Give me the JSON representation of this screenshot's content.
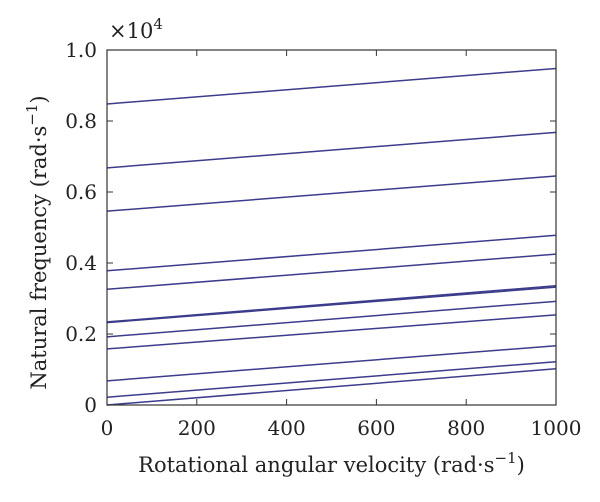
{
  "chart_data": {
    "type": "line",
    "title": "",
    "xlabel": "Rotational angular velocity (rad·s",
    "xlabel_sup": "−1",
    "xlabel_close": ")",
    "ylabel": "Natural frequency (rad·s",
    "ylabel_sup": "−1",
    "ylabel_close": ")",
    "y_multiplier_base": "×10",
    "y_multiplier_exp": "4",
    "xlim": [
      0,
      1000
    ],
    "ylim": [
      0,
      1.0
    ],
    "xticks": [
      0,
      200,
      400,
      600,
      800,
      1000
    ],
    "xtick_labels": [
      "0",
      "200",
      "400",
      "600",
      "800",
      "1000"
    ],
    "yticks": [
      0,
      0.2,
      0.4,
      0.6,
      0.8,
      1.0
    ],
    "ytick_labels": [
      "0",
      "0.2",
      "0.4",
      "0.6",
      "0.8",
      "1.0"
    ],
    "grid": false,
    "line_color": "#3c3c8c",
    "x": [
      0,
      1000
    ],
    "series": [
      {
        "values": [
          0.0,
          0.102
        ]
      },
      {
        "values": [
          0.022,
          0.122
        ]
      },
      {
        "values": [
          0.068,
          0.167
        ]
      },
      {
        "values": [
          0.158,
          0.254
        ]
      },
      {
        "values": [
          0.192,
          0.292
        ]
      },
      {
        "values": [
          0.232,
          0.332
        ]
      },
      {
        "values": [
          0.234,
          0.336
        ]
      },
      {
        "values": [
          0.326,
          0.425
        ]
      },
      {
        "values": [
          0.378,
          0.478
        ]
      },
      {
        "values": [
          0.546,
          0.645
        ]
      },
      {
        "values": [
          0.668,
          0.768
        ]
      },
      {
        "values": [
          0.848,
          0.948
        ]
      }
    ]
  }
}
